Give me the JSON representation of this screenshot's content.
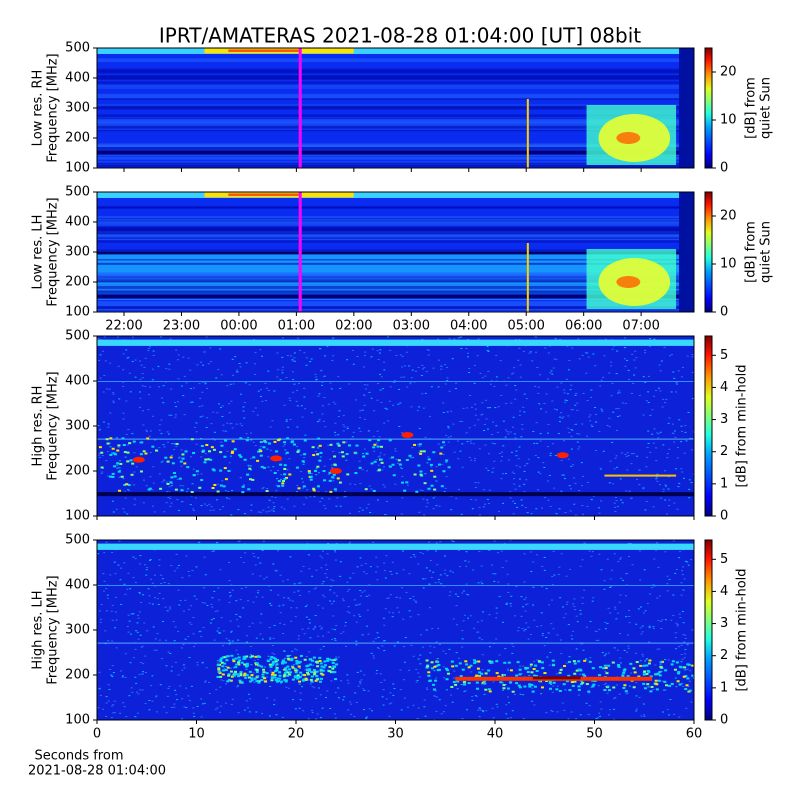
{
  "figure_title": "IPRT/AMATERAS 2021-08-28 01:04:00 [UT]   08bit",
  "chart_data": [
    {
      "type": "heatmap",
      "y_label": [
        "Low res. RH",
        "Frequency [MHz]"
      ],
      "xlim": [
        21.53,
        31.92
      ],
      "sharex": 1,
      "ylim": [
        100,
        500
      ],
      "yticks": [
        100,
        200,
        300,
        400,
        500
      ],
      "colorbar_label": [
        "[dB] from",
        "quiet Sun"
      ],
      "clim": [
        0,
        25
      ],
      "cticks": [
        0,
        10,
        20
      ],
      "marker_x": 25.0667,
      "marker_color": "#ff00ff",
      "colormap": "jet"
    },
    {
      "type": "heatmap",
      "y_label": [
        "Low res. LH",
        "Frequency [MHz]"
      ],
      "xlim": [
        21.53,
        31.92
      ],
      "xticks": [
        {
          "value": 22,
          "label": "22:00"
        },
        {
          "value": 23,
          "label": "23:00"
        },
        {
          "value": 24,
          "label": "00:00"
        },
        {
          "value": 25,
          "label": "01:00"
        },
        {
          "value": 26,
          "label": "02:00"
        },
        {
          "value": 27,
          "label": "03:00"
        },
        {
          "value": 28,
          "label": "04:00"
        },
        {
          "value": 29,
          "label": "05:00"
        },
        {
          "value": 30,
          "label": "06:00"
        },
        {
          "value": 31,
          "label": "07:00"
        }
      ],
      "ylim": [
        100,
        500
      ],
      "yticks": [
        100,
        200,
        300,
        400,
        500
      ],
      "colorbar_label": [
        "[dB] from",
        "quiet Sun"
      ],
      "clim": [
        0,
        25
      ],
      "cticks": [
        0,
        10,
        20
      ],
      "marker_x": 25.0667,
      "marker_color": "#ff00ff",
      "colormap": "jet"
    },
    {
      "type": "heatmap",
      "y_label": [
        "High res. RH",
        "Frequency [MHz]"
      ],
      "xlim": [
        0,
        60
      ],
      "sharex": 3,
      "ylim": [
        100,
        500
      ],
      "yticks": [
        100,
        200,
        300,
        400,
        500
      ],
      "colorbar_label": [
        "[dB] from min-hold"
      ],
      "clim": [
        0,
        5.6
      ],
      "cticks": [
        0,
        1,
        2,
        3,
        4,
        5
      ],
      "colormap": "jet"
    },
    {
      "type": "heatmap",
      "y_label": [
        "High res. LH",
        "Frequency [MHz]"
      ],
      "xlim": [
        0,
        60
      ],
      "xticks": [
        0,
        10,
        20,
        30,
        40,
        50,
        60
      ],
      "x_label": [
        "Seconds from",
        "2021-08-28 01:04:00"
      ],
      "ylim": [
        100,
        500
      ],
      "yticks": [
        100,
        200,
        300,
        400,
        500
      ],
      "colorbar_label": [
        "[dB] from min-hold"
      ],
      "clim": [
        0,
        5.6
      ],
      "cticks": [
        0,
        1,
        2,
        3,
        4,
        5
      ],
      "colormap": "jet"
    }
  ]
}
